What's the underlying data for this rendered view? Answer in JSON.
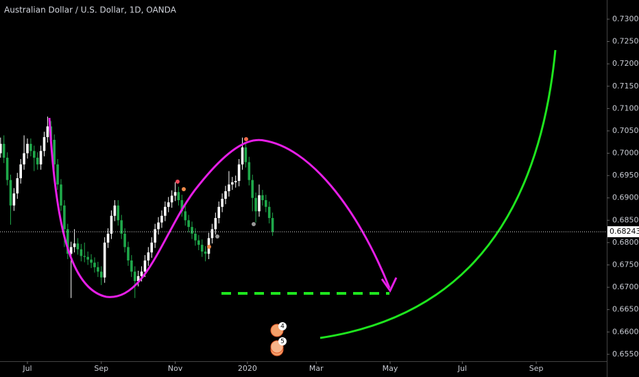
{
  "chart_data": {
    "type": "candlestick",
    "title": "Australian Dollar / U.S. Dollar, 1D, OANDA",
    "up_color": "#ffffff",
    "down_color": "#1fa84a",
    "x": [
      -16,
      -14,
      -12,
      -10,
      -8,
      -6,
      -4,
      -2,
      0,
      2,
      4,
      6,
      8,
      10,
      12,
      14,
      16,
      18,
      20,
      22,
      24,
      26,
      28,
      30,
      32,
      34,
      36,
      38,
      40,
      42,
      44,
      46,
      48,
      50,
      52,
      54,
      56,
      58,
      60,
      62,
      64,
      66,
      68,
      70,
      72,
      74,
      76,
      78,
      80,
      82,
      84,
      86,
      88,
      90,
      92,
      94,
      96,
      98,
      100,
      102,
      104,
      106,
      108,
      110,
      112,
      114,
      116,
      118,
      120,
      122,
      124,
      126,
      128,
      130,
      132,
      134,
      136,
      138,
      140,
      142,
      144,
      146
    ],
    "open": [
      0.7,
      0.7021,
      0.699,
      0.694,
      0.6883,
      0.691,
      0.6944,
      0.6975,
      0.7,
      0.7021,
      0.7005,
      0.699,
      0.6975,
      0.7005,
      0.7036,
      0.706,
      0.703,
      0.6975,
      0.693,
      0.6883,
      0.683,
      0.6775,
      0.679,
      0.6798,
      0.6785,
      0.677,
      0.6768,
      0.6762,
      0.6755,
      0.6745,
      0.6735,
      0.6722,
      0.68,
      0.682,
      0.686,
      0.6883,
      0.685,
      0.682,
      0.679,
      0.676,
      0.6735,
      0.6714,
      0.6725,
      0.6735,
      0.676,
      0.6778,
      0.68,
      0.683,
      0.6845,
      0.686,
      0.688,
      0.689,
      0.6905,
      0.6913,
      0.6895,
      0.687,
      0.685,
      0.6835,
      0.682,
      0.6805,
      0.6795,
      0.678,
      0.6775,
      0.681,
      0.683,
      0.6855,
      0.688,
      0.6898,
      0.6915,
      0.693,
      0.6935,
      0.6938,
      0.6975,
      0.7013,
      0.698,
      0.694,
      0.69,
      0.687,
      0.6906,
      0.6895,
      0.688,
      0.6855
    ],
    "high": [
      0.7035,
      0.704,
      0.7002,
      0.6952,
      0.6922,
      0.6956,
      0.6987,
      0.704,
      0.7033,
      0.7033,
      0.7017,
      0.7002,
      0.7017,
      0.7048,
      0.7082,
      0.7072,
      0.7042,
      0.6987,
      0.6942,
      0.6895,
      0.6842,
      0.6802,
      0.683,
      0.681,
      0.6797,
      0.68,
      0.678,
      0.6774,
      0.6767,
      0.6757,
      0.6747,
      0.6812,
      0.6832,
      0.6872,
      0.6895,
      0.6895,
      0.6862,
      0.6832,
      0.6802,
      0.6772,
      0.6747,
      0.6737,
      0.6747,
      0.6772,
      0.679,
      0.6812,
      0.6842,
      0.6857,
      0.6872,
      0.6892,
      0.6902,
      0.6917,
      0.6935,
      0.6925,
      0.6907,
      0.6882,
      0.6862,
      0.6847,
      0.6832,
      0.6817,
      0.6807,
      0.6792,
      0.6822,
      0.6842,
      0.6867,
      0.6892,
      0.691,
      0.6927,
      0.696,
      0.6947,
      0.695,
      0.6987,
      0.7035,
      0.7025,
      0.6992,
      0.6952,
      0.6912,
      0.693,
      0.6918,
      0.6907,
      0.6892,
      0.6867
    ],
    "low": [
      0.699,
      0.6978,
      0.6928,
      0.684,
      0.6871,
      0.6898,
      0.6932,
      0.6963,
      0.6988,
      0.6993,
      0.696,
      0.6963,
      0.6963,
      0.6993,
      0.7024,
      0.7018,
      0.6963,
      0.6918,
      0.6871,
      0.679,
      0.6763,
      0.6676,
      0.6778,
      0.6773,
      0.6758,
      0.6756,
      0.675,
      0.6743,
      0.6733,
      0.6723,
      0.6705,
      0.671,
      0.6788,
      0.6808,
      0.6848,
      0.6838,
      0.6808,
      0.6778,
      0.6748,
      0.6723,
      0.6676,
      0.6702,
      0.6713,
      0.6723,
      0.6748,
      0.6766,
      0.6788,
      0.6818,
      0.6833,
      0.6848,
      0.6868,
      0.6878,
      0.6893,
      0.6883,
      0.6858,
      0.6838,
      0.6823,
      0.6808,
      0.6793,
      0.6783,
      0.6768,
      0.6758,
      0.6763,
      0.6798,
      0.6818,
      0.6843,
      0.6868,
      0.6886,
      0.6903,
      0.6918,
      0.6923,
      0.6926,
      0.6963,
      0.6968,
      0.6928,
      0.687,
      0.6845,
      0.6858,
      0.6883,
      0.6868,
      0.6843,
      0.6815
    ],
    "close": [
      0.7021,
      0.699,
      0.694,
      0.6883,
      0.691,
      0.6944,
      0.6975,
      0.7,
      0.7021,
      0.7005,
      0.699,
      0.6975,
      0.7005,
      0.7036,
      0.706,
      0.703,
      0.6975,
      0.693,
      0.6883,
      0.683,
      0.6775,
      0.679,
      0.6798,
      0.6785,
      0.677,
      0.6768,
      0.6762,
      0.6755,
      0.6745,
      0.6735,
      0.6722,
      0.68,
      0.682,
      0.686,
      0.6883,
      0.685,
      0.682,
      0.679,
      0.676,
      0.6735,
      0.6714,
      0.6725,
      0.6735,
      0.676,
      0.6778,
      0.68,
      0.683,
      0.6845,
      0.686,
      0.688,
      0.689,
      0.6905,
      0.6913,
      0.6895,
      0.687,
      0.685,
      0.6835,
      0.682,
      0.6805,
      0.6795,
      0.678,
      0.6775,
      0.681,
      0.683,
      0.6855,
      0.688,
      0.6898,
      0.6915,
      0.693,
      0.6935,
      0.6938,
      0.6975,
      0.7013,
      0.698,
      0.694,
      0.69,
      0.687,
      0.6906,
      0.6895,
      0.688,
      0.6855,
      0.6824
    ],
    "xlim": [
      -16.33,
      345
    ],
    "xticks": [
      {
        "value": 0,
        "label": "Jul"
      },
      {
        "value": 44,
        "label": "Sep"
      },
      {
        "value": 88,
        "label": "Nov"
      },
      {
        "value": 131,
        "label": "2020"
      },
      {
        "value": 172,
        "label": "Mar"
      },
      {
        "value": 216,
        "label": "May"
      },
      {
        "value": 259,
        "label": "Jul"
      },
      {
        "value": 303,
        "label": "Sep"
      }
    ],
    "ylim": [
      0.65345,
      0.73429
    ],
    "yticks": [
      {
        "value": 0.655,
        "label": "0.65500"
      },
      {
        "value": 0.66,
        "label": "0.66000"
      },
      {
        "value": 0.665,
        "label": "0.66500"
      },
      {
        "value": 0.67,
        "label": "0.67000"
      },
      {
        "value": 0.675,
        "label": "0.67500"
      },
      {
        "value": 0.68,
        "label": "0.68000"
      },
      {
        "value": 0.685,
        "label": "0.68500"
      },
      {
        "value": 0.69,
        "label": "0.69000"
      },
      {
        "value": 0.695,
        "label": "0.69500"
      },
      {
        "value": 0.7,
        "label": "0.70000"
      },
      {
        "value": 0.705,
        "label": "0.70500"
      },
      {
        "value": 0.71,
        "label": "0.71000"
      },
      {
        "value": 0.715,
        "label": "0.71500"
      },
      {
        "value": 0.72,
        "label": "0.72000"
      },
      {
        "value": 0.725,
        "label": "0.72500"
      },
      {
        "value": 0.73,
        "label": "0.73000"
      }
    ],
    "last_price": 0.68243,
    "event_badges": [
      "4",
      "5"
    ]
  }
}
